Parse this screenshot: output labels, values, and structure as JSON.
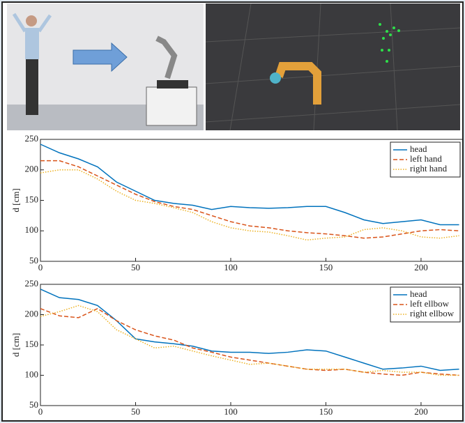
{
  "chart_data": [
    {
      "type": "line",
      "ylabel": "d [cm]",
      "xlim": [
        0,
        222
      ],
      "ylim": [
        50,
        250
      ],
      "xticks": [
        0,
        50,
        100,
        150,
        200
      ],
      "yticks": [
        50,
        100,
        150,
        200,
        250
      ],
      "legend": "upper right",
      "x": [
        0,
        10,
        20,
        30,
        40,
        50,
        60,
        70,
        80,
        90,
        100,
        110,
        120,
        130,
        140,
        150,
        160,
        170,
        180,
        190,
        200,
        210,
        220
      ],
      "series": [
        {
          "name": "head",
          "color": "#0072bd",
          "style": "solid",
          "values": [
            242,
            228,
            218,
            205,
            180,
            165,
            150,
            145,
            142,
            135,
            140,
            138,
            137,
            138,
            140,
            140,
            130,
            118,
            112,
            115,
            118,
            110,
            110
          ]
        },
        {
          "name": "left hand",
          "color": "#d95319",
          "style": "dashed",
          "values": [
            215,
            215,
            205,
            190,
            175,
            160,
            148,
            140,
            135,
            125,
            115,
            108,
            105,
            100,
            97,
            95,
            92,
            88,
            90,
            95,
            100,
            102,
            100
          ]
        },
        {
          "name": "right hand",
          "color": "#edb120",
          "style": "dotted",
          "values": [
            195,
            200,
            200,
            185,
            165,
            150,
            145,
            138,
            130,
            115,
            105,
            100,
            98,
            92,
            85,
            88,
            90,
            102,
            105,
            100,
            90,
            88,
            92
          ]
        }
      ]
    },
    {
      "type": "line",
      "ylabel": "d [cm]",
      "xlim": [
        0,
        222
      ],
      "ylim": [
        50,
        250
      ],
      "xticks": [
        0,
        50,
        100,
        150,
        200
      ],
      "yticks": [
        50,
        100,
        150,
        200,
        250
      ],
      "legend": "upper right",
      "x": [
        0,
        10,
        20,
        30,
        40,
        50,
        60,
        70,
        80,
        90,
        100,
        110,
        120,
        130,
        140,
        150,
        160,
        170,
        180,
        190,
        200,
        210,
        220
      ],
      "series": [
        {
          "name": "head",
          "color": "#0072bd",
          "style": "solid",
          "values": [
            242,
            228,
            225,
            215,
            190,
            160,
            155,
            152,
            148,
            140,
            138,
            138,
            136,
            138,
            142,
            140,
            130,
            120,
            110,
            112,
            115,
            108,
            110
          ]
        },
        {
          "name": "left ellbow",
          "color": "#d95319",
          "style": "dashed",
          "values": [
            210,
            198,
            195,
            210,
            190,
            175,
            165,
            158,
            145,
            138,
            130,
            125,
            120,
            115,
            110,
            108,
            110,
            105,
            102,
            100,
            105,
            102,
            100
          ]
        },
        {
          "name": "right ellbow",
          "color": "#edb120",
          "style": "dotted",
          "values": [
            197,
            205,
            215,
            205,
            175,
            160,
            145,
            148,
            140,
            132,
            125,
            118,
            120,
            115,
            110,
            110,
            110,
            105,
            108,
            105,
            105,
            100,
            100
          ]
        }
      ]
    }
  ]
}
